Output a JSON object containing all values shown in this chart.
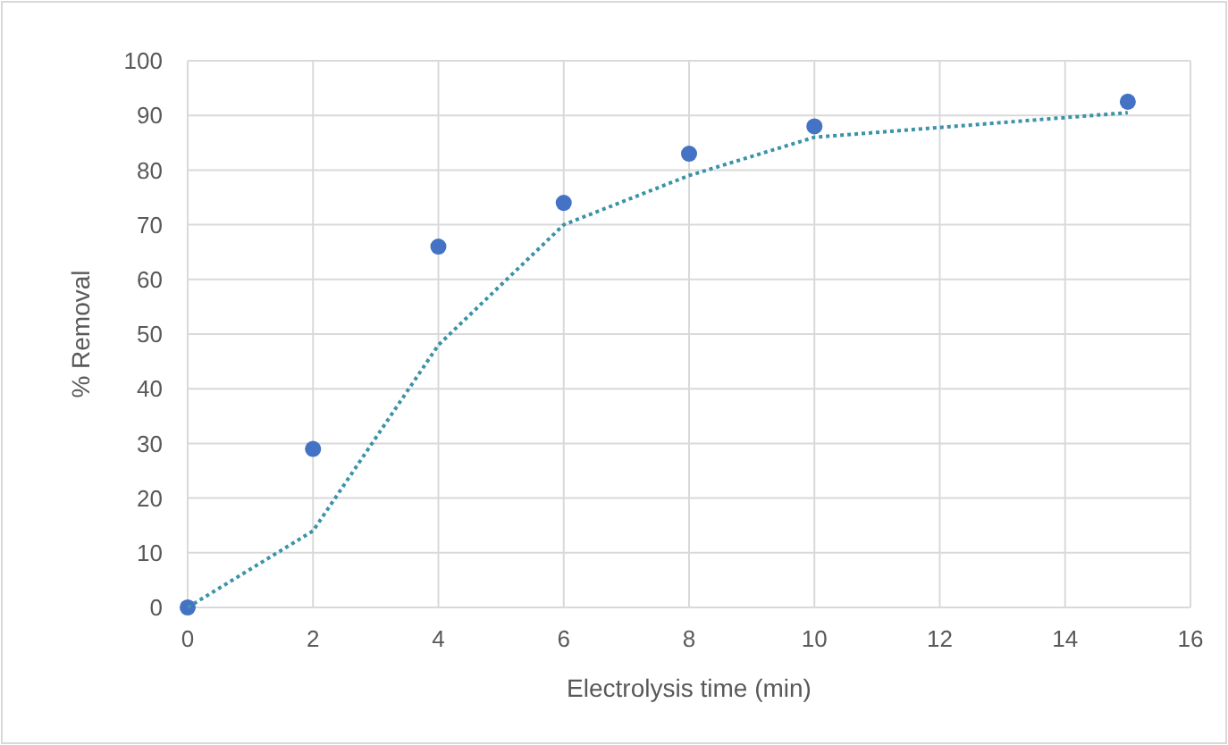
{
  "chart_data": {
    "type": "scatter",
    "xlabel": "Electrolysis time (min)",
    "ylabel": "% Removal",
    "xlim": [
      0,
      16
    ],
    "xticks": [
      0,
      2,
      4,
      6,
      8,
      10,
      12,
      14,
      16
    ],
    "ylim": [
      0,
      100
    ],
    "yticks": [
      0,
      10,
      20,
      30,
      40,
      50,
      60,
      70,
      80,
      90,
      100
    ],
    "grid": true,
    "series": [
      {
        "color": "#4472c4",
        "marker": "circle",
        "x": [
          0,
          2,
          4,
          6,
          8,
          10,
          15
        ],
        "values": [
          0,
          29,
          66,
          74,
          83,
          88,
          92.5
        ]
      },
      {
        "type": "line",
        "color": "#3a93a8",
        "marker": "none",
        "line_style": "dotted",
        "x": [
          0,
          2,
          4,
          6,
          8,
          10,
          15
        ],
        "values": [
          0,
          14,
          48,
          70,
          79,
          86,
          90.5
        ]
      }
    ]
  }
}
